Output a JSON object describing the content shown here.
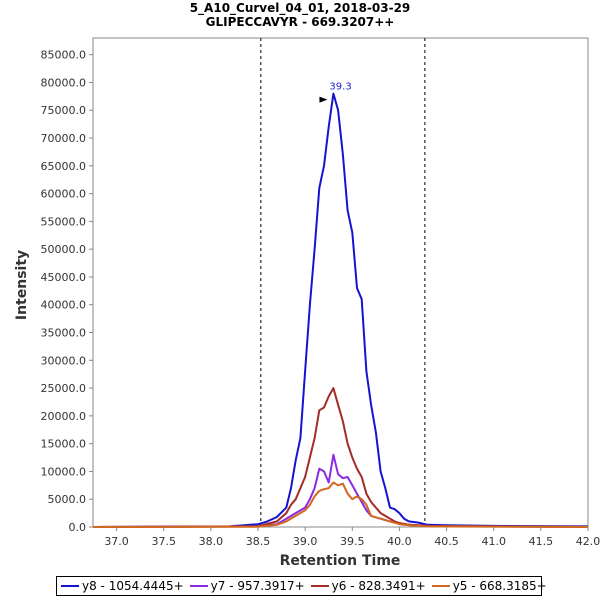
{
  "chart_data": {
    "type": "line",
    "title_line1": "5_A10_Curvel_04_01, 2018-03-29",
    "title_line2": "GLIPECCAVYR - 669.3207++",
    "xlabel": "Retention Time",
    "ylabel": "Intensity",
    "xlim": [
      36.75,
      42.0
    ],
    "ylim": [
      0,
      88000
    ],
    "xticks": [
      37.0,
      37.5,
      38.0,
      38.5,
      39.0,
      39.5,
      40.0,
      40.5,
      41.0,
      41.5,
      42.0
    ],
    "xtick_labels": [
      "37.0",
      "37.5",
      "38.0",
      "38.5",
      "39.0",
      "39.5",
      "40.0",
      "40.5",
      "41.0",
      "41.5",
      "42.0"
    ],
    "yticks": [
      0,
      5000,
      10000,
      15000,
      20000,
      25000,
      30000,
      35000,
      40000,
      45000,
      50000,
      55000,
      60000,
      65000,
      70000,
      75000,
      80000,
      85000
    ],
    "ytick_labels": [
      "0.0",
      "5000.0",
      "10000.0",
      "15000.0",
      "20000.0",
      "25000.0",
      "30000.0",
      "35000.0",
      "40000.0",
      "45000.0",
      "50000.0",
      "55000.0",
      "60000.0",
      "65000.0",
      "70000.0",
      "75000.0",
      "80000.0",
      "85000.0"
    ],
    "boundaries": [
      38.53,
      40.27
    ],
    "peak_annotation": {
      "text": "39.3",
      "x": 39.3,
      "y": 78000,
      "color": "#1f1fd0"
    },
    "legend_position": "bottom",
    "series": [
      {
        "name": "y8 - 1054.4445+",
        "color": "#1414d2",
        "x": [
          36.75,
          38.2,
          38.5,
          38.6,
          38.7,
          38.8,
          38.85,
          38.9,
          38.95,
          39.0,
          39.05,
          39.1,
          39.15,
          39.2,
          39.25,
          39.3,
          39.35,
          39.4,
          39.45,
          39.5,
          39.55,
          39.6,
          39.65,
          39.7,
          39.75,
          39.8,
          39.85,
          39.9,
          39.95,
          40.0,
          40.05,
          40.1,
          40.2,
          40.3,
          40.5,
          41.0,
          42.0
        ],
        "y": [
          0,
          100,
          500,
          1000,
          1800,
          3500,
          7000,
          12000,
          16000,
          28000,
          40000,
          50000,
          61000,
          65000,
          72000,
          78000,
          75000,
          67000,
          57000,
          53000,
          43000,
          41000,
          28000,
          22000,
          17000,
          10000,
          7000,
          3500,
          3200,
          2500,
          1500,
          1000,
          800,
          400,
          300,
          200,
          100
        ]
      },
      {
        "name": "y7 - 957.3917+",
        "color": "#8a2be2",
        "x": [
          36.75,
          38.5,
          38.7,
          38.8,
          38.9,
          39.0,
          39.05,
          39.1,
          39.15,
          39.2,
          39.25,
          39.3,
          39.35,
          39.4,
          39.45,
          39.5,
          39.55,
          39.6,
          39.65,
          39.7,
          39.8,
          39.9,
          40.0,
          40.1,
          40.3,
          42.0
        ],
        "y": [
          0,
          100,
          500,
          1500,
          2500,
          3500,
          5000,
          7000,
          10500,
          10000,
          8000,
          13000,
          9500,
          8800,
          9000,
          7500,
          6000,
          4500,
          3000,
          2000,
          1500,
          1000,
          700,
          400,
          200,
          0
        ]
      },
      {
        "name": "y6 - 828.3491+",
        "color": "#a52a2a",
        "x": [
          36.75,
          38.5,
          38.7,
          38.8,
          38.85,
          38.9,
          38.95,
          39.0,
          39.05,
          39.1,
          39.15,
          39.2,
          39.25,
          39.3,
          39.35,
          39.4,
          39.45,
          39.5,
          39.55,
          39.6,
          39.65,
          39.7,
          39.75,
          39.8,
          39.85,
          39.9,
          39.95,
          40.0,
          40.1,
          40.3,
          42.0
        ],
        "y": [
          0,
          100,
          1000,
          2500,
          4000,
          5000,
          7000,
          9000,
          12500,
          16000,
          21000,
          21500,
          23500,
          25000,
          22000,
          19000,
          15000,
          12500,
          10500,
          9000,
          6000,
          4500,
          3500,
          2500,
          2000,
          1500,
          1000,
          700,
          400,
          200,
          0
        ]
      },
      {
        "name": "y5 - 668.3185+",
        "color": "#d2691e",
        "x": [
          36.75,
          38.5,
          38.7,
          38.8,
          38.9,
          39.0,
          39.05,
          39.1,
          39.15,
          39.2,
          39.25,
          39.3,
          39.35,
          39.4,
          39.45,
          39.5,
          39.55,
          39.6,
          39.65,
          39.7,
          39.8,
          39.9,
          40.0,
          40.1,
          40.3,
          42.0
        ],
        "y": [
          0,
          50,
          400,
          1000,
          2000,
          3000,
          4000,
          5500,
          6500,
          6800,
          7000,
          8000,
          7500,
          7800,
          6000,
          5000,
          5500,
          5000,
          4000,
          2000,
          1500,
          1000,
          500,
          300,
          100,
          0
        ]
      }
    ]
  }
}
